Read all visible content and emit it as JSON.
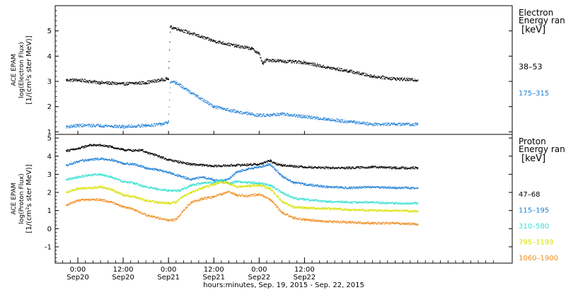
{
  "chart_data": [
    {
      "type": "scatter",
      "title": "",
      "ylabel_lines": [
        "ACE EPAM",
        "log(Electron Flux)",
        "[1/(cm²s ster MeV)]"
      ],
      "legend_title_lines": [
        "Electron",
        "Energy ran"
      ],
      "legend_unit": "[keV]",
      "ylim": [
        0.9,
        6.0
      ],
      "yticks": [
        "1",
        "2",
        "3",
        "4",
        "5"
      ],
      "xlim": [
        -6,
        115
      ],
      "series": [
        {
          "name": "38–53",
          "color": "#000000",
          "points": [
            [
              -3,
              3.05
            ],
            [
              0,
              3.05
            ],
            [
              6,
              2.95
            ],
            [
              12,
              2.9
            ],
            [
              18,
              2.95
            ],
            [
              22,
              3.05
            ],
            [
              23.5,
              3.1
            ],
            [
              24,
              3.1
            ],
            [
              24.5,
              5.15
            ],
            [
              26,
              5.1
            ],
            [
              30,
              4.9
            ],
            [
              36,
              4.6
            ],
            [
              42,
              4.4
            ],
            [
              46,
              4.3
            ],
            [
              48,
              4.1
            ],
            [
              49,
              3.7
            ],
            [
              50,
              3.85
            ],
            [
              54,
              3.8
            ],
            [
              60,
              3.75
            ],
            [
              66,
              3.55
            ],
            [
              72,
              3.4
            ],
            [
              78,
              3.2
            ],
            [
              84,
              3.1
            ],
            [
              90,
              3.05
            ]
          ]
        },
        {
          "name": "175–315",
          "color": "#1e7fd6",
          "points": [
            [
              -3,
              1.2
            ],
            [
              0,
              1.25
            ],
            [
              6,
              1.25
            ],
            [
              12,
              1.2
            ],
            [
              18,
              1.25
            ],
            [
              22,
              1.3
            ],
            [
              23.5,
              1.35
            ],
            [
              24,
              1.4
            ],
            [
              24.5,
              2.95
            ],
            [
              26,
              2.95
            ],
            [
              30,
              2.55
            ],
            [
              36,
              2.0
            ],
            [
              42,
              1.8
            ],
            [
              48,
              1.65
            ],
            [
              54,
              1.7
            ],
            [
              60,
              1.6
            ],
            [
              66,
              1.5
            ],
            [
              72,
              1.4
            ],
            [
              78,
              1.3
            ],
            [
              84,
              1.3
            ],
            [
              90,
              1.3
            ]
          ]
        }
      ]
    },
    {
      "type": "scatter",
      "title": "",
      "ylabel_lines": [
        "ACE EPAM",
        "log(Proton Flux)",
        "[1/(cm²s ster MeV)]"
      ],
      "legend_title_lines": [
        "Proton",
        "Energy ran"
      ],
      "legend_unit": "[keV]",
      "ylim": [
        -1.9,
        5.2
      ],
      "yticks": [
        "-1",
        "0",
        "1",
        "2",
        "3",
        "4",
        "5"
      ],
      "xlim": [
        -6,
        115
      ],
      "xlabel": "hours:minutes, Sep. 19, 2015 - Sep. 22, 2015",
      "xticks": [
        {
          "x": 0,
          "time": "0:00",
          "day": "Sep20"
        },
        {
          "x": 12,
          "time": "12:00",
          "day": "Sep20"
        },
        {
          "x": 24,
          "time": "0:00",
          "day": "Sep21"
        },
        {
          "x": 36,
          "time": "12:00",
          "day": "Sep21"
        },
        {
          "x": 48,
          "time": "0:00",
          "day": "Sep22"
        },
        {
          "x": 60,
          "time": "12:00",
          "day": "Sep22"
        }
      ],
      "series": [
        {
          "name": "47–68",
          "color": "#000000",
          "points": [
            [
              -3,
              4.3
            ],
            [
              0,
              4.4
            ],
            [
              3,
              4.6
            ],
            [
              6,
              4.6
            ],
            [
              9,
              4.5
            ],
            [
              12,
              4.35
            ],
            [
              15,
              4.3
            ],
            [
              17,
              4.35
            ],
            [
              18,
              4.2
            ],
            [
              20,
              4.1
            ],
            [
              24,
              3.8
            ],
            [
              30,
              3.55
            ],
            [
              36,
              3.45
            ],
            [
              42,
              3.5
            ],
            [
              48,
              3.55
            ],
            [
              51,
              3.75
            ],
            [
              52,
              3.6
            ],
            [
              54,
              3.5
            ],
            [
              60,
              3.4
            ],
            [
              66,
              3.35
            ],
            [
              72,
              3.35
            ],
            [
              78,
              3.4
            ],
            [
              84,
              3.35
            ],
            [
              90,
              3.35
            ]
          ]
        },
        {
          "name": "115–195",
          "color": "#1e7fd6",
          "points": [
            [
              -3,
              3.5
            ],
            [
              0,
              3.7
            ],
            [
              3,
              3.8
            ],
            [
              6,
              3.85
            ],
            [
              9,
              3.8
            ],
            [
              12,
              3.6
            ],
            [
              15,
              3.55
            ],
            [
              18,
              3.35
            ],
            [
              21,
              3.25
            ],
            [
              24,
              3.1
            ],
            [
              27,
              2.9
            ],
            [
              30,
              2.7
            ],
            [
              33,
              2.85
            ],
            [
              36,
              2.7
            ],
            [
              38,
              2.6
            ],
            [
              40,
              2.75
            ],
            [
              42,
              3.1
            ],
            [
              45,
              3.3
            ],
            [
              48,
              3.4
            ],
            [
              51,
              3.55
            ],
            [
              54,
              2.9
            ],
            [
              57,
              2.55
            ],
            [
              60,
              2.45
            ],
            [
              66,
              2.3
            ],
            [
              72,
              2.25
            ],
            [
              78,
              2.3
            ],
            [
              84,
              2.25
            ],
            [
              90,
              2.25
            ]
          ]
        },
        {
          "name": "310–580",
          "color": "#35e0d2",
          "points": [
            [
              -3,
              2.7
            ],
            [
              0,
              2.85
            ],
            [
              3,
              2.95
            ],
            [
              6,
              3.0
            ],
            [
              9,
              2.85
            ],
            [
              12,
              2.6
            ],
            [
              15,
              2.5
            ],
            [
              18,
              2.3
            ],
            [
              21,
              2.2
            ],
            [
              24,
              2.1
            ],
            [
              27,
              2.1
            ],
            [
              30,
              2.4
            ],
            [
              33,
              2.5
            ],
            [
              36,
              2.55
            ],
            [
              38,
              2.7
            ],
            [
              40,
              2.5
            ],
            [
              42,
              2.6
            ],
            [
              45,
              2.55
            ],
            [
              48,
              2.5
            ],
            [
              51,
              2.4
            ],
            [
              54,
              2.0
            ],
            [
              57,
              1.7
            ],
            [
              60,
              1.6
            ],
            [
              66,
              1.5
            ],
            [
              72,
              1.45
            ],
            [
              78,
              1.45
            ],
            [
              84,
              1.4
            ],
            [
              90,
              1.4
            ]
          ]
        },
        {
          "name": "795–1193",
          "color": "#d8e000",
          "points": [
            [
              -3,
              2.0
            ],
            [
              0,
              2.2
            ],
            [
              3,
              2.25
            ],
            [
              6,
              2.3
            ],
            [
              9,
              2.15
            ],
            [
              12,
              1.85
            ],
            [
              15,
              1.75
            ],
            [
              18,
              1.55
            ],
            [
              21,
              1.45
            ],
            [
              24,
              1.4
            ],
            [
              26,
              1.45
            ],
            [
              28,
              1.8
            ],
            [
              30,
              2.0
            ],
            [
              33,
              2.25
            ],
            [
              36,
              2.45
            ],
            [
              38,
              2.55
            ],
            [
              40,
              2.5
            ],
            [
              42,
              2.3
            ],
            [
              45,
              2.35
            ],
            [
              48,
              2.4
            ],
            [
              51,
              2.2
            ],
            [
              54,
              1.5
            ],
            [
              57,
              1.2
            ],
            [
              60,
              1.15
            ],
            [
              66,
              1.1
            ],
            [
              72,
              1.05
            ],
            [
              78,
              1.0
            ],
            [
              84,
              1.0
            ],
            [
              90,
              0.95
            ]
          ]
        },
        {
          "name": "1060–1900",
          "color": "#f08c1e",
          "points": [
            [
              -3,
              1.3
            ],
            [
              0,
              1.55
            ],
            [
              3,
              1.6
            ],
            [
              6,
              1.6
            ],
            [
              9,
              1.45
            ],
            [
              12,
              1.2
            ],
            [
              15,
              1.05
            ],
            [
              18,
              0.75
            ],
            [
              21,
              0.6
            ],
            [
              24,
              0.45
            ],
            [
              26,
              0.5
            ],
            [
              28,
              1.0
            ],
            [
              30,
              1.45
            ],
            [
              33,
              1.65
            ],
            [
              36,
              1.75
            ],
            [
              38,
              1.9
            ],
            [
              40,
              2.05
            ],
            [
              42,
              1.85
            ],
            [
              45,
              1.8
            ],
            [
              48,
              1.9
            ],
            [
              51,
              1.6
            ],
            [
              54,
              0.9
            ],
            [
              57,
              0.6
            ],
            [
              60,
              0.5
            ],
            [
              66,
              0.4
            ],
            [
              72,
              0.35
            ],
            [
              78,
              0.3
            ],
            [
              84,
              0.3
            ],
            [
              90,
              0.25
            ]
          ]
        }
      ]
    }
  ]
}
